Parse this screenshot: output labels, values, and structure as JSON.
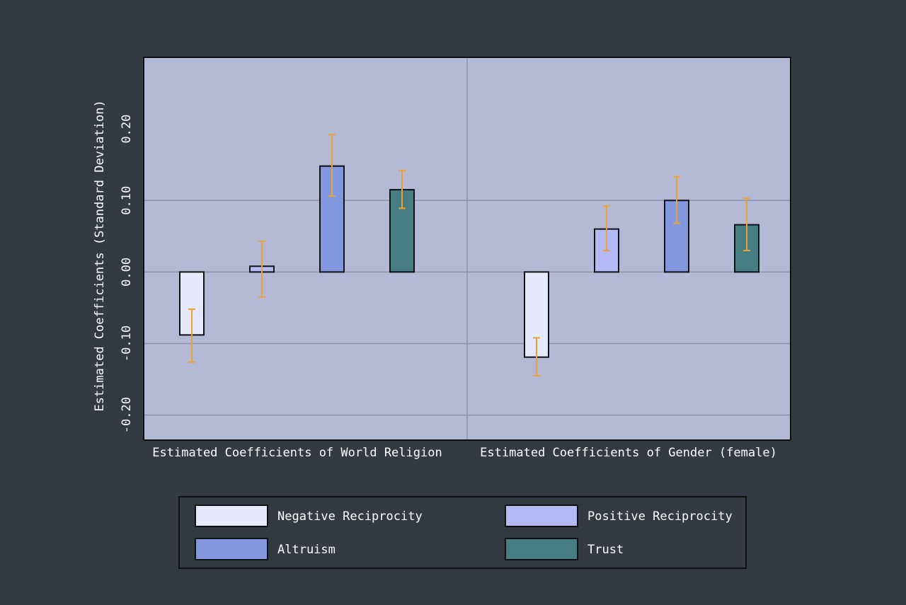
{
  "chart_data": {
    "type": "bar",
    "title": "",
    "ylabel": "Estimated Coefficients (Standard Deviation)",
    "ylim": [
      -0.235,
      0.3
    ],
    "yticks": [
      -0.2,
      -0.1,
      0.0,
      0.1,
      0.2
    ],
    "ytick_labels": [
      "-0.20",
      "-0.10",
      "0.00",
      "0.10",
      "0.20"
    ],
    "grid": true,
    "categories": [
      "Estimated Coefficients of World Religion",
      "Estimated Coefficients of Gender (female)"
    ],
    "series": [
      {
        "name": "Negative Reciprocity",
        "color": "#e6e8fb",
        "values": [
          -0.088,
          -0.119
        ],
        "ci_low": [
          -0.126,
          -0.145
        ],
        "ci_high": [
          -0.052,
          -0.092
        ]
      },
      {
        "name": "Positive Reciprocity",
        "color": "#b4baf6",
        "values": [
          0.008,
          0.06
        ],
        "ci_low": [
          -0.035,
          0.03
        ],
        "ci_high": [
          0.043,
          0.092
        ]
      },
      {
        "name": "Altruism",
        "color": "#8297e0",
        "values": [
          0.148,
          0.1
        ],
        "ci_low": [
          0.106,
          0.068
        ],
        "ci_high": [
          0.192,
          0.133
        ]
      },
      {
        "name": "Trust",
        "color": "#447e82",
        "values": [
          0.115,
          0.066
        ],
        "ci_low": [
          0.089,
          0.03
        ],
        "ci_high": [
          0.142,
          0.103
        ]
      }
    ],
    "colors": {
      "page_background": "#343a42",
      "plot_background": "#b3b8d4",
      "gridline": "#8c92ab",
      "error_bar": "#eba234",
      "axis_text": "#ffffff"
    },
    "legend": {
      "placement": "bottom",
      "columns": 2
    }
  }
}
